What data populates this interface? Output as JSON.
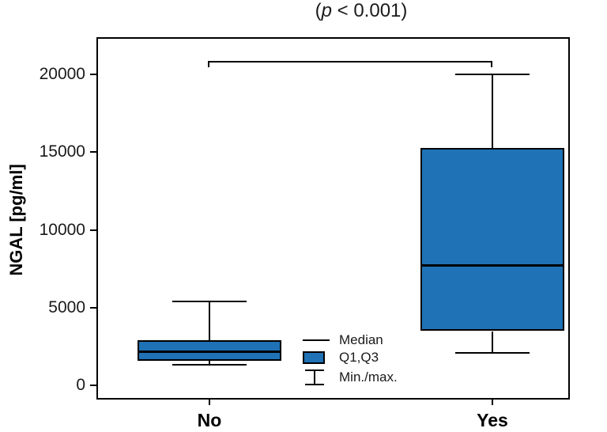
{
  "title": {
    "open": "(",
    "stat": "p",
    "rest": " < 0.001)"
  },
  "chart_data": {
    "type": "box",
    "title": "(p < 0.001)",
    "xlabel": "",
    "ylabel": "NGAL [pg/ml]",
    "categories": [
      "No",
      "Yes"
    ],
    "yticks": [
      0,
      5000,
      10000,
      15000,
      20000
    ],
    "ylim": [
      -900,
      22400
    ],
    "grid": false,
    "legend_position": "inside-bottom-center",
    "series": [
      {
        "category": "No",
        "min": 1350,
        "q1": 1600,
        "median": 2200,
        "q3": 2900,
        "max": 5400
      },
      {
        "category": "Yes",
        "min": 2100,
        "q1": 3500,
        "median": 7700,
        "q3": 15300,
        "max": 20000
      }
    ],
    "legend": [
      {
        "symbol": "median-line",
        "label": "Median"
      },
      {
        "symbol": "q1q3-box",
        "label": "Q1,Q3"
      },
      {
        "symbol": "minmax-whisker",
        "label": "Min./max."
      }
    ],
    "annotation": {
      "type": "significance-bracket",
      "between": [
        "No",
        "Yes"
      ],
      "label": "p < 0.001"
    },
    "colors": {
      "box_fill": "#1f72b5",
      "line": "#000000"
    }
  }
}
